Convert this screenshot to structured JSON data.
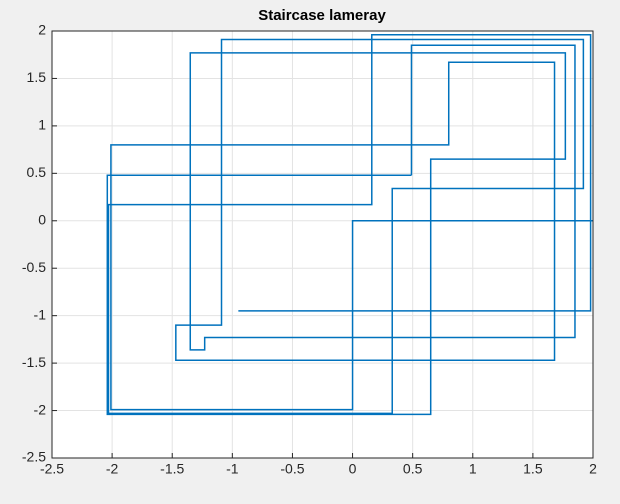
{
  "chart_data": {
    "type": "line",
    "title": "Staircase lameray",
    "x": [
      -0.95,
      1.98,
      1.98,
      0.16,
      0.16,
      -2.03,
      -2.03,
      0.33,
      0.33,
      1.92,
      1.92,
      -1.09,
      -1.09,
      -1.47,
      -1.47,
      1.68,
      1.68,
      0.8,
      0.8,
      -2.01,
      -2.01,
      0.0,
      0.0,
      2.0,
      null,
      0.49,
      -2.04,
      -2.04,
      0.65,
      0.65,
      1.77,
      1.77,
      -1.35,
      -1.35,
      -1.23,
      -1.23,
      1.85,
      1.85,
      0.49,
      0.49
    ],
    "series": [
      {
        "color": "#0072bd",
        "values": [
          -0.95,
          -0.95,
          1.96,
          1.96,
          0.17,
          0.17,
          -2.03,
          -2.03,
          0.34,
          0.34,
          1.91,
          1.91,
          -1.1,
          -1.1,
          -1.47,
          -1.47,
          1.67,
          1.67,
          0.8,
          0.8,
          -1.99,
          -1.99,
          0.0,
          0.0,
          null,
          0.48,
          0.48,
          -2.04,
          -2.04,
          0.65,
          0.65,
          1.77,
          1.77,
          -1.36,
          -1.36,
          -1.23,
          -1.23,
          1.85,
          1.85,
          0.48
        ]
      }
    ],
    "xlim": [
      -2.5,
      2
    ],
    "xticks": [
      -2.5,
      -2,
      -1.5,
      -1,
      -0.5,
      0,
      0.5,
      1,
      1.5,
      2
    ],
    "ylim": [
      -2.5,
      2
    ],
    "yticks": [
      -2.5,
      -2,
      -1.5,
      -1,
      -0.5,
      0,
      0.5,
      1,
      1.5,
      2
    ],
    "grid": true
  }
}
